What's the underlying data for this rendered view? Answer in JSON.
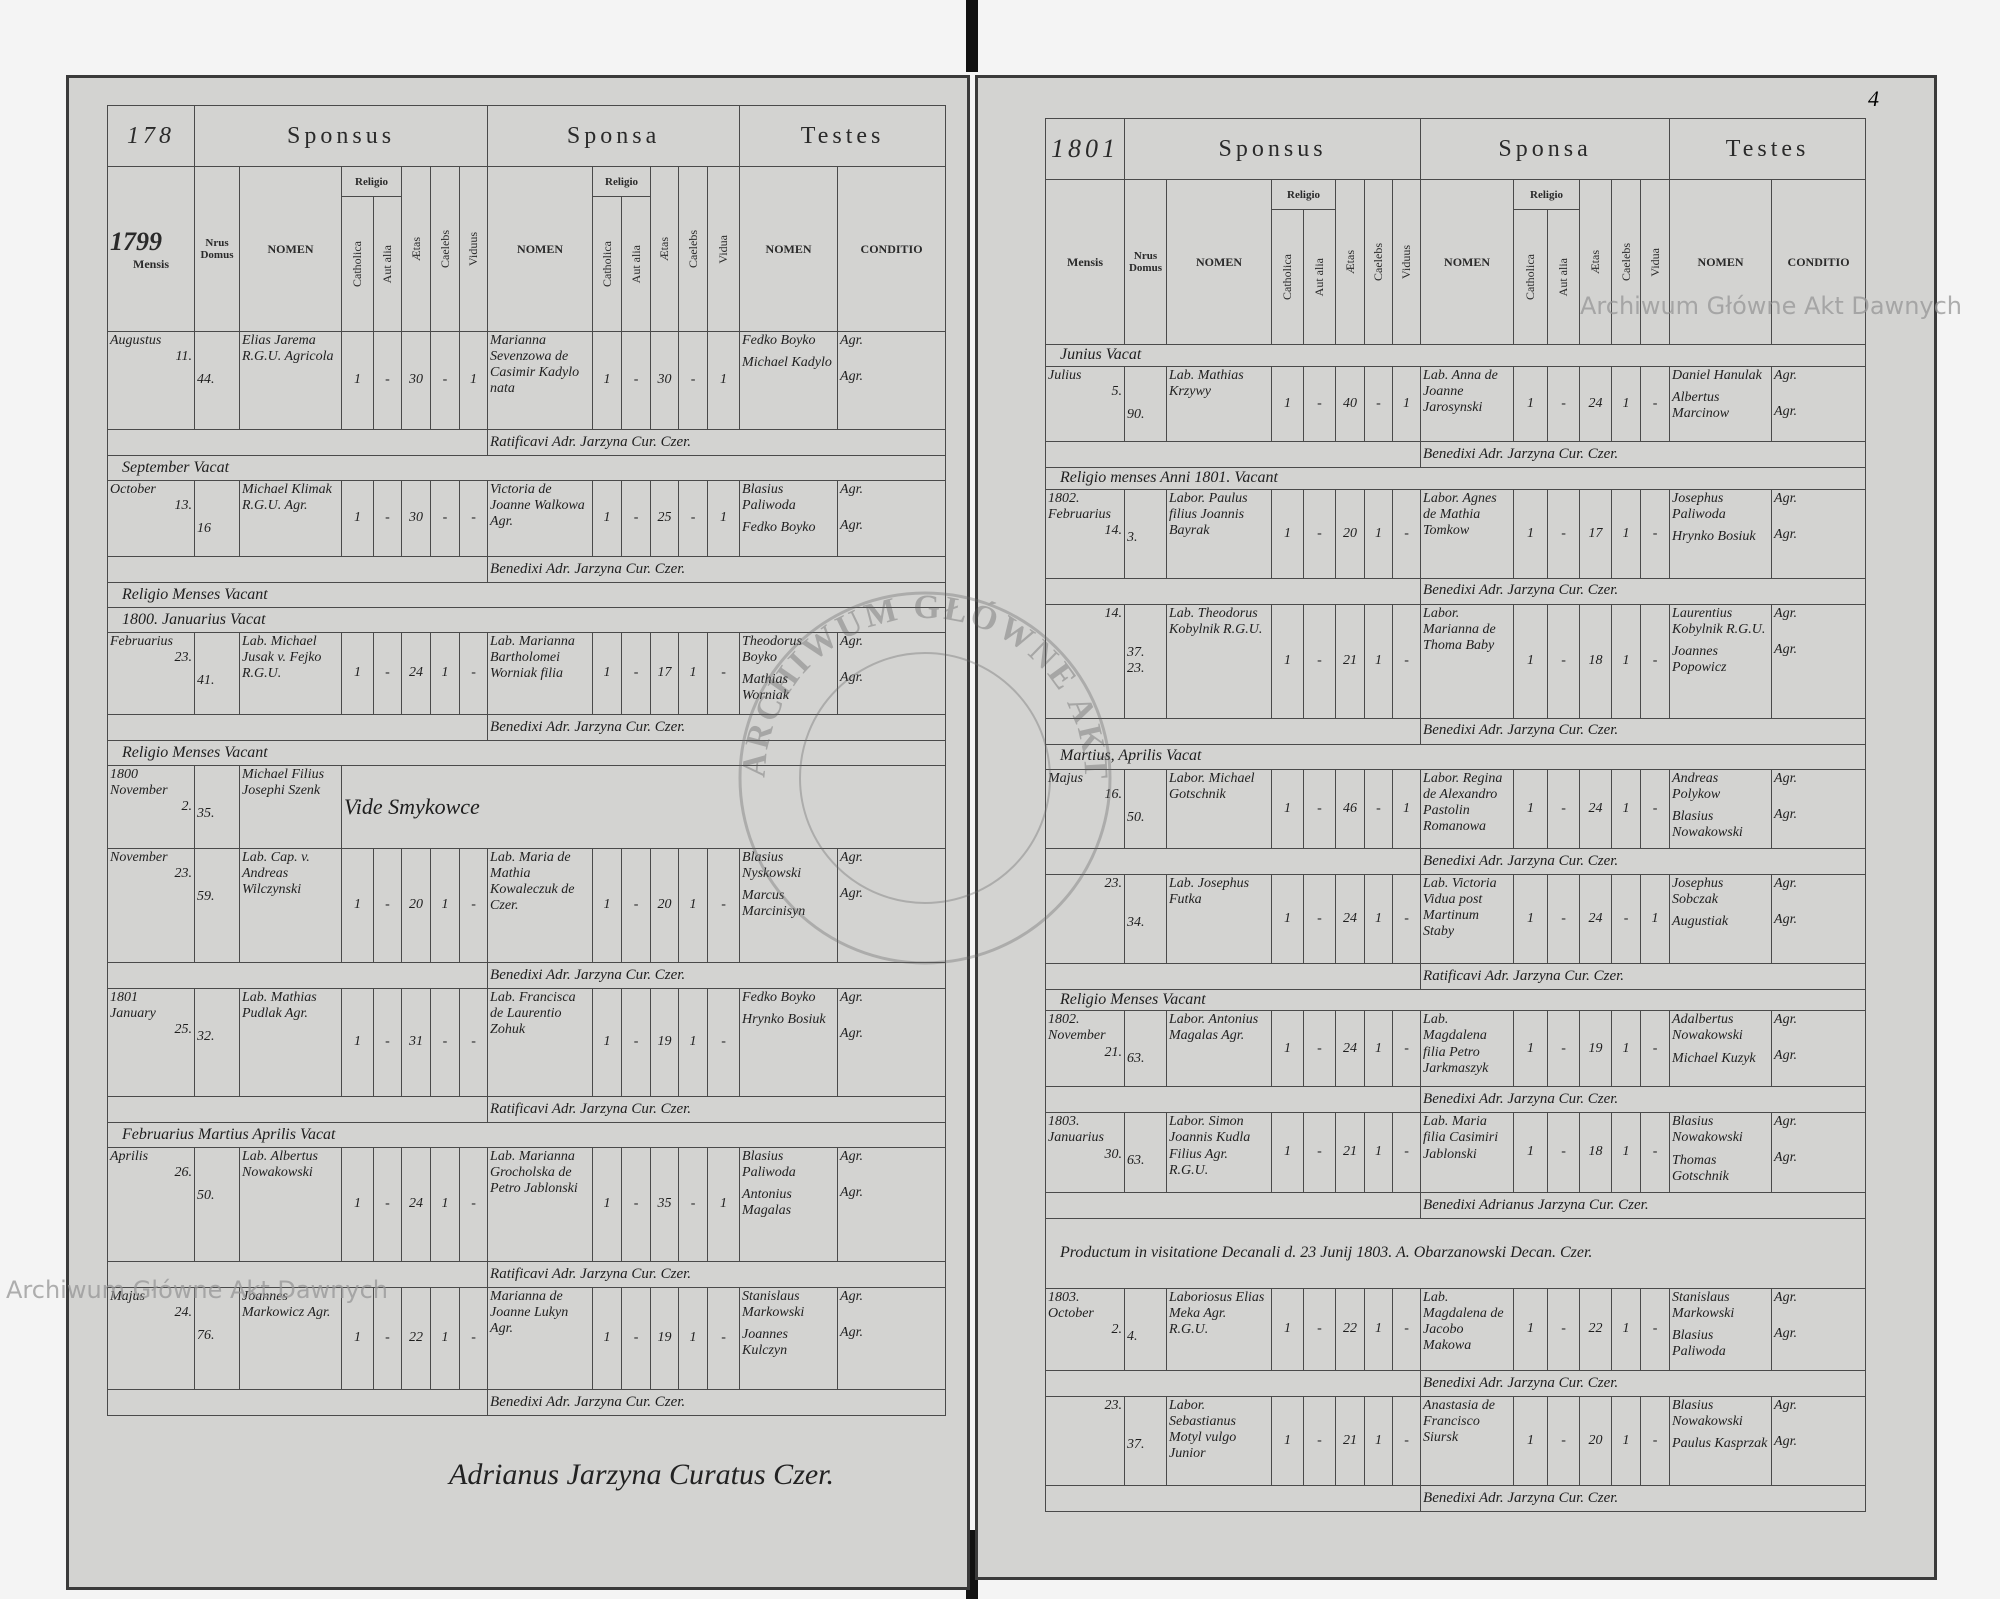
{
  "left_page": {
    "page_number": "178",
    "year": "1799",
    "headers": {
      "sponsus": "Sponsus",
      "sponsa": "Sponsa",
      "testes": "Testes",
      "mensis": "Mensis",
      "numerus_domus": "Nrus Domus",
      "sponsus_nomen": "NOMEN",
      "sponsus_religio": "Religio",
      "sponsus_catholica": "Catholica",
      "sponsus_aut_alia": "Aut alia",
      "sponsus_aetas": "Ætas",
      "sponsus_caelebs": "Caelebs",
      "sponsus_viduus": "Viduus",
      "sponsa_nomen": "NOMEN",
      "sponsa_religio": "Religio",
      "sponsa_catholica": "Catholica",
      "sponsa_aut_alia": "Aut alia",
      "sponsa_aetas": "Ætas",
      "sponsa_caelebs": "Caelebs",
      "sponsa_vidua": "Vidua",
      "testes_nomen": "NOMEN",
      "testes_conditio": "CONDITIO"
    },
    "entries": [
      {
        "month": "Augustus",
        "day": "11.",
        "house": "44.",
        "groom": "Elias Jarema R.G.U. Agricola",
        "g": [
          "1",
          "-",
          "30",
          "-",
          "1"
        ],
        "bride": "Marianna Sevenzowa de Casimir Kadylo nata",
        "b": [
          "1",
          "-",
          "30",
          "-",
          "1"
        ],
        "witnesses": [
          "Fedko Boyko",
          "Michael Kadylo"
        ],
        "conditio": [
          "Agr.",
          "Agr."
        ],
        "note": "Ratificavi Adr. Jarzyna Cur. Czer."
      },
      {
        "note": "September Vacat"
      },
      {
        "month": "October",
        "day": "13.",
        "house": "16",
        "groom": "Michael Klimak R.G.U. Agr.",
        "g": [
          "1",
          "-",
          "30",
          "-",
          "-"
        ],
        "bride": "Victoria de Joanne Walkowa Agr.",
        "b": [
          "1",
          "-",
          "25",
          "-",
          "1"
        ],
        "witnesses": [
          "Blasius Paliwoda",
          "Fedko Boyko"
        ],
        "conditio": [
          "Agr.",
          "Agr."
        ],
        "note": "Benedixi Adr. Jarzyna Cur. Czer."
      },
      {
        "note": "Religio Menses Vacant"
      },
      {
        "note": "1800. Januarius Vacat"
      },
      {
        "month": "Februarius",
        "day": "23.",
        "house": "41.",
        "groom": "Lab. Michael Jusak v. Fejko R.G.U.",
        "g": [
          "1",
          "-",
          "24",
          "1",
          "-"
        ],
        "bride": "Lab. Marianna Bartholomei Worniak filia",
        "b": [
          "1",
          "-",
          "17",
          "1",
          "-"
        ],
        "witnesses": [
          "Theodorus Boyko",
          "Mathias Worniak"
        ],
        "conditio": [
          "Agr.",
          "Agr."
        ],
        "note": "Benedixi Adr. Jarzyna Cur. Czer."
      },
      {
        "note": "Religio Menses Vacant"
      },
      {
        "year": "1800",
        "month": "November",
        "day": "2.",
        "house": "35.",
        "groom": "Michael Filius Josephi Szenk",
        "remark": "Vide Smykowce"
      },
      {
        "month": "November",
        "day": "23.",
        "house": "59.",
        "groom": "Lab. Cap. v. Andreas Wilczynski",
        "g": [
          "1",
          "-",
          "20",
          "1",
          "-"
        ],
        "bride": "Lab. Maria de Mathia Kowaleczuk de Czer.",
        "b": [
          "1",
          "-",
          "20",
          "1",
          "-"
        ],
        "witnesses": [
          "Blasius Nyskowski",
          "Marcus Marcinisyn"
        ],
        "conditio": [
          "Agr.",
          "Agr."
        ],
        "note": "Benedixi Adr. Jarzyna Cur. Czer."
      },
      {
        "year": "1801",
        "month": "January",
        "day": "25.",
        "house": "32.",
        "groom": "Lab. Mathias Pudlak Agr.",
        "g": [
          "1",
          "-",
          "31",
          "-",
          "-"
        ],
        "bride": "Lab. Francisca de Laurentio Zohuk",
        "b": [
          "1",
          "-",
          "19",
          "1",
          "-"
        ],
        "witnesses": [
          "Fedko Boyko",
          "Hrynko Bosiuk"
        ],
        "conditio": [
          "Agr.",
          "Agr."
        ],
        "note": "Ratificavi Adr. Jarzyna Cur. Czer."
      },
      {
        "note": "Februarius Martius Aprilis Vacat"
      },
      {
        "month": "Aprilis",
        "day": "26.",
        "house": "50.",
        "groom": "Lab. Albertus Nowakowski",
        "g": [
          "1",
          "-",
          "24",
          "1",
          "-"
        ],
        "bride": "Lab. Marianna Grocholska de Petro Jablonski",
        "b": [
          "1",
          "-",
          "35",
          "-",
          "1"
        ],
        "witnesses": [
          "Blasius Paliwoda",
          "Antonius Magalas"
        ],
        "conditio": [
          "Agr.",
          "Agr."
        ],
        "note": "Ratificavi Adr. Jarzyna Cur. Czer."
      },
      {
        "month": "Majus",
        "day": "24.",
        "house": "76.",
        "groom": "Joannes Markowicz Agr.",
        "g": [
          "1",
          "-",
          "22",
          "1",
          "-"
        ],
        "bride": "Marianna de Joanne Lukyn Agr.",
        "b": [
          "1",
          "-",
          "19",
          "1",
          "-"
        ],
        "witnesses": [
          "Stanislaus Markowski",
          "Joannes Kulczyn"
        ],
        "conditio": [
          "Agr.",
          "Agr."
        ],
        "note": "Benedixi Adr. Jarzyna Cur. Czer."
      }
    ],
    "signature": "Adrianus Jarzyna Curatus Czer."
  },
  "right_page": {
    "page_number": "4",
    "year": "1801",
    "headers": {
      "sponsus": "Sponsus",
      "sponsa": "Sponsa",
      "testes": "Testes",
      "mensis": "Mensis",
      "numerus_domus": "Nrus Domus",
      "sponsus_nomen": "NOMEN",
      "sponsus_religio": "Religio",
      "sponsus_catholica": "Catholica",
      "sponsus_aut_alia": "Aut alia",
      "sponsus_aetas": "Ætas",
      "sponsus_caelebs": "Caelebs",
      "sponsus_viduus": "Viduus",
      "sponsa_nomen": "NOMEN",
      "sponsa_religio": "Religio",
      "sponsa_catholica": "Catholica",
      "sponsa_aut_alia": "Aut alia",
      "sponsa_aetas": "Ætas",
      "sponsa_caelebs": "Caelebs",
      "sponsa_vidua": "Vidua",
      "testes_nomen": "NOMEN",
      "testes_conditio": "CONDITIO"
    },
    "entries": [
      {
        "note": "Junius Vacat"
      },
      {
        "month": "Julius",
        "day": "5.",
        "house": "90.",
        "groom": "Lab. Mathias Krzywy",
        "g": [
          "1",
          "-",
          "40",
          "-",
          "1"
        ],
        "bride": "Lab. Anna de Joanne Jarosynski",
        "b": [
          "1",
          "-",
          "24",
          "1",
          "-"
        ],
        "witnesses": [
          "Daniel Hanulak",
          "Albertus Marcinow"
        ],
        "conditio": [
          "Agr.",
          "Agr."
        ],
        "note": "Benedixi Adr. Jarzyna Cur. Czer."
      },
      {
        "note": "Religio menses Anni 1801. Vacant"
      },
      {
        "year": "1802.",
        "month": "Februarius",
        "day": "14.",
        "house": "3.",
        "groom": "Labor. Paulus filius Joannis Bayrak",
        "g": [
          "1",
          "-",
          "20",
          "1",
          "-"
        ],
        "bride": "Labor. Agnes de Mathia Tomkow",
        "b": [
          "1",
          "-",
          "17",
          "1",
          "-"
        ],
        "witnesses": [
          "Josephus Paliwoda",
          "Hrynko Bosiuk"
        ],
        "conditio": [
          "Agr.",
          "Agr."
        ],
        "note": "Benedixi Adr. Jarzyna Cur. Czer."
      },
      {
        "day": "14.",
        "house": "37. 23.",
        "groom": "Lab. Theodorus Kobylnik R.G.U.",
        "g": [
          "1",
          "-",
          "21",
          "1",
          "-"
        ],
        "bride": "Labor. Marianna de Thoma Baby",
        "b": [
          "1",
          "-",
          "18",
          "1",
          "-"
        ],
        "witnesses": [
          "Laurentius Kobylnik R.G.U.",
          "Joannes Popowicz"
        ],
        "conditio": [
          "Agr.",
          "Agr."
        ],
        "note": "Benedixi Adr. Jarzyna Cur. Czer."
      },
      {
        "note": "Martius, Aprilis Vacat"
      },
      {
        "month": "Majus",
        "day": "16.",
        "house": "50.",
        "groom": "Labor. Michael Gotschnik",
        "g": [
          "1",
          "-",
          "46",
          "-",
          "1"
        ],
        "bride": "Labor. Regina de Alexandro Pastolin Romanowa",
        "b": [
          "1",
          "-",
          "24",
          "1",
          "-"
        ],
        "witnesses": [
          "Andreas Polykow",
          "Blasius Nowakowski"
        ],
        "conditio": [
          "Agr.",
          "Agr."
        ],
        "note": "Benedixi Adr. Jarzyna Cur. Czer."
      },
      {
        "day": "23.",
        "house": "34.",
        "groom": "Lab. Josephus Futka",
        "g": [
          "1",
          "-",
          "24",
          "1",
          "-"
        ],
        "bride": "Lab. Victoria Vidua post Martinum Staby",
        "b": [
          "1",
          "-",
          "24",
          "-",
          "1"
        ],
        "witnesses": [
          "Josephus Sobczak",
          "Augustiak"
        ],
        "conditio": [
          "Agr.",
          "Agr."
        ],
        "note": "Ratificavi Adr. Jarzyna Cur. Czer."
      },
      {
        "note": "Religio Menses Vacant"
      },
      {
        "year": "1802.",
        "month": "November",
        "day": "21.",
        "house": "63.",
        "groom": "Labor. Antonius Magalas Agr.",
        "g": [
          "1",
          "-",
          "24",
          "1",
          "-"
        ],
        "bride": "Lab. Magdalena filia Petro Jarkmaszyk",
        "b": [
          "1",
          "-",
          "19",
          "1",
          "-"
        ],
        "witnesses": [
          "Adalbertus Nowakowski",
          "Michael Kuzyk"
        ],
        "conditio": [
          "Agr.",
          "Agr."
        ],
        "note": "Benedixi Adr. Jarzyna Cur. Czer."
      },
      {
        "year": "1803.",
        "month": "Januarius",
        "day": "30.",
        "house": "63.",
        "groom": "Labor. Simon Joannis Kudla Filius Agr. R.G.U.",
        "g": [
          "1",
          "-",
          "21",
          "1",
          "-"
        ],
        "bride": "Lab. Maria filia Casimiri Jablonski",
        "b": [
          "1",
          "-",
          "18",
          "1",
          "-"
        ],
        "witnesses": [
          "Blasius Nowakowski",
          "Thomas Gotschnik"
        ],
        "conditio": [
          "Agr.",
          "Agr."
        ],
        "note": "Benedixi Adrianus Jarzyna Cur. Czer."
      },
      {
        "note": "Productum in visitatione Decanali d. 23 Junij 1803. A. Obarzanowski Decan. Czer."
      },
      {
        "year": "1803.",
        "month": "October",
        "day": "2.",
        "house": "4.",
        "groom": "Laboriosus Elias Meka Agr. R.G.U.",
        "g": [
          "1",
          "-",
          "22",
          "1",
          "-"
        ],
        "bride": "Lab. Magdalena de Jacobo Makowa",
        "b": [
          "1",
          "-",
          "22",
          "1",
          "-"
        ],
        "witnesses": [
          "Stanislaus Markowski",
          "Blasius Paliwoda"
        ],
        "conditio": [
          "Agr.",
          "Agr."
        ],
        "note": "Benedixi Adr. Jarzyna Cur. Czer."
      },
      {
        "day": "23.",
        "house": "37.",
        "groom": "Labor. Sebastianus Motyl vulgo Junior",
        "g": [
          "1",
          "-",
          "21",
          "1",
          "-"
        ],
        "bride": "Anastasia de Francisco Siursk",
        "b": [
          "1",
          "-",
          "20",
          "1",
          "-"
        ],
        "witnesses": [
          "Blasius Nowakowski",
          "Paulus Kasprzak"
        ],
        "conditio": [
          "Agr.",
          "Agr."
        ],
        "note": "Benedixi Adr. Jarzyna Cur. Czer."
      }
    ]
  },
  "stamp": "ARCHIWUM GŁÓWNE AKT DAWNYCH",
  "watermarks": [
    "Archiwum Główne Akt Dawnych",
    "Archiwum Główne Akt Dawnych"
  ]
}
